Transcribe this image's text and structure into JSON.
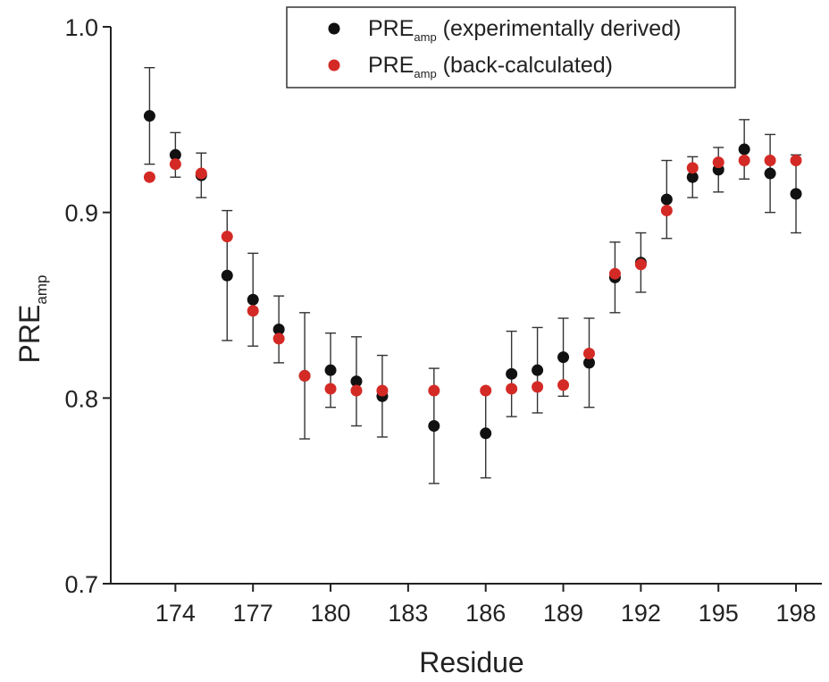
{
  "chart_data": {
    "type": "scatter",
    "xlabel": "Residue",
    "ylabel": {
      "base": "PRE",
      "sub": "amp"
    },
    "xlim": [
      171.5,
      199
    ],
    "ylim": [
      0.7,
      1.0
    ],
    "xticks": [
      174,
      177,
      180,
      183,
      186,
      189,
      192,
      195,
      198
    ],
    "yticks": [
      0.7,
      0.8,
      0.9,
      1.0
    ],
    "xtick_labels": [
      "174",
      "177",
      "180",
      "183",
      "186",
      "189",
      "192",
      "195",
      "198"
    ],
    "ytick_labels": [
      "0.7",
      "0.8",
      "0.9",
      "1.0"
    ],
    "grid": false,
    "legend_position": "top-right",
    "series": [
      {
        "label_base": "PRE",
        "label_sub": "amp",
        "label_rest": " (experimentally derived)",
        "color": "#111111",
        "error_bars": true,
        "points": [
          {
            "x": 173,
            "y": 0.952,
            "err": 0.026
          },
          {
            "x": 174,
            "y": 0.931,
            "err": 0.012
          },
          {
            "x": 175,
            "y": 0.92,
            "err": 0.012
          },
          {
            "x": 176,
            "y": 0.866,
            "err": 0.035
          },
          {
            "x": 177,
            "y": 0.853,
            "err": 0.025
          },
          {
            "x": 178,
            "y": 0.837,
            "err": 0.018
          },
          {
            "x": 179,
            "y": 0.812,
            "err": 0.034
          },
          {
            "x": 180,
            "y": 0.815,
            "err": 0.02
          },
          {
            "x": 181,
            "y": 0.809,
            "err": 0.024
          },
          {
            "x": 182,
            "y": 0.801,
            "err": 0.022
          },
          {
            "x": 184,
            "y": 0.785,
            "err": 0.031
          },
          {
            "x": 186,
            "y": 0.781,
            "err": 0.024
          },
          {
            "x": 187,
            "y": 0.813,
            "err": 0.023
          },
          {
            "x": 188,
            "y": 0.815,
            "err": 0.023
          },
          {
            "x": 189,
            "y": 0.822,
            "err": 0.021
          },
          {
            "x": 190,
            "y": 0.819,
            "err": 0.024
          },
          {
            "x": 191,
            "y": 0.865,
            "err": 0.019
          },
          {
            "x": 192,
            "y": 0.873,
            "err": 0.016
          },
          {
            "x": 193,
            "y": 0.907,
            "err": 0.021
          },
          {
            "x": 194,
            "y": 0.919,
            "err": 0.011
          },
          {
            "x": 195,
            "y": 0.923,
            "err": 0.012
          },
          {
            "x": 196,
            "y": 0.934,
            "err": 0.016
          },
          {
            "x": 197,
            "y": 0.921,
            "err": 0.021
          },
          {
            "x": 198,
            "y": 0.91,
            "err": 0.021
          }
        ]
      },
      {
        "label_base": "PRE",
        "label_sub": "amp",
        "label_rest": " (back-calculated)",
        "color": "#d42a26",
        "error_bars": false,
        "points": [
          {
            "x": 173,
            "y": 0.919
          },
          {
            "x": 174,
            "y": 0.926
          },
          {
            "x": 175,
            "y": 0.921
          },
          {
            "x": 176,
            "y": 0.887
          },
          {
            "x": 177,
            "y": 0.847
          },
          {
            "x": 178,
            "y": 0.832
          },
          {
            "x": 179,
            "y": 0.812
          },
          {
            "x": 180,
            "y": 0.805
          },
          {
            "x": 181,
            "y": 0.804
          },
          {
            "x": 182,
            "y": 0.804
          },
          {
            "x": 184,
            "y": 0.804
          },
          {
            "x": 186,
            "y": 0.804
          },
          {
            "x": 187,
            "y": 0.805
          },
          {
            "x": 188,
            "y": 0.806
          },
          {
            "x": 189,
            "y": 0.807
          },
          {
            "x": 190,
            "y": 0.824
          },
          {
            "x": 191,
            "y": 0.867
          },
          {
            "x": 192,
            "y": 0.872
          },
          {
            "x": 193,
            "y": 0.901
          },
          {
            "x": 194,
            "y": 0.924
          },
          {
            "x": 195,
            "y": 0.927
          },
          {
            "x": 196,
            "y": 0.928
          },
          {
            "x": 197,
            "y": 0.928
          },
          {
            "x": 198,
            "y": 0.928
          }
        ]
      }
    ]
  }
}
